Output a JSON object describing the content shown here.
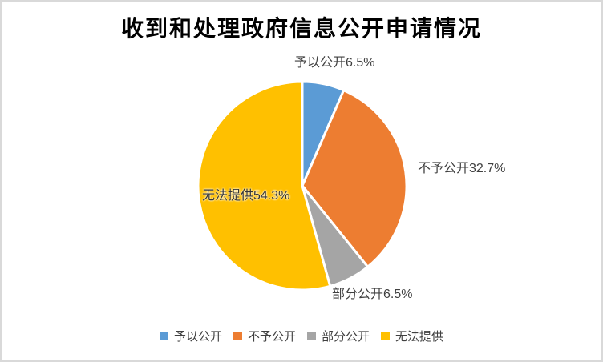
{
  "chart_data": {
    "type": "pie",
    "title": "收到和处理政府信息公开申请情况",
    "categories": [
      "予以公开",
      "不予公开",
      "部分公开",
      "无法提供"
    ],
    "values": [
      6.5,
      32.7,
      6.5,
      54.3
    ],
    "unit": "%",
    "colors": [
      "#5B9BD5",
      "#ED7D31",
      "#A5A5A5",
      "#FFC000"
    ],
    "start_angle_deg": 0,
    "direction": "clockwise",
    "slice_border_color": "#FFFFFF",
    "legend_position": "bottom",
    "labels": [
      {
        "text": "予以公开6.5%",
        "placement": "outside-top"
      },
      {
        "text": "不予公开32.7%",
        "placement": "outside-right"
      },
      {
        "text": "部分公开6.5%",
        "placement": "outside-bottom"
      },
      {
        "text": "无法提供54.3%",
        "placement": "inside-left"
      }
    ]
  },
  "legend": {
    "items": [
      {
        "label": "予以公开",
        "color": "#5B9BD5"
      },
      {
        "label": "不予公开",
        "color": "#ED7D31"
      },
      {
        "label": "部分公开",
        "color": "#A5A5A5"
      },
      {
        "label": "无法提供",
        "color": "#FFC000"
      }
    ]
  },
  "frame": {
    "background": "#FFFFFF",
    "border_color": "#D9D9D9"
  },
  "text_colors": {
    "title": "#000000",
    "data_labels": "#404040"
  }
}
